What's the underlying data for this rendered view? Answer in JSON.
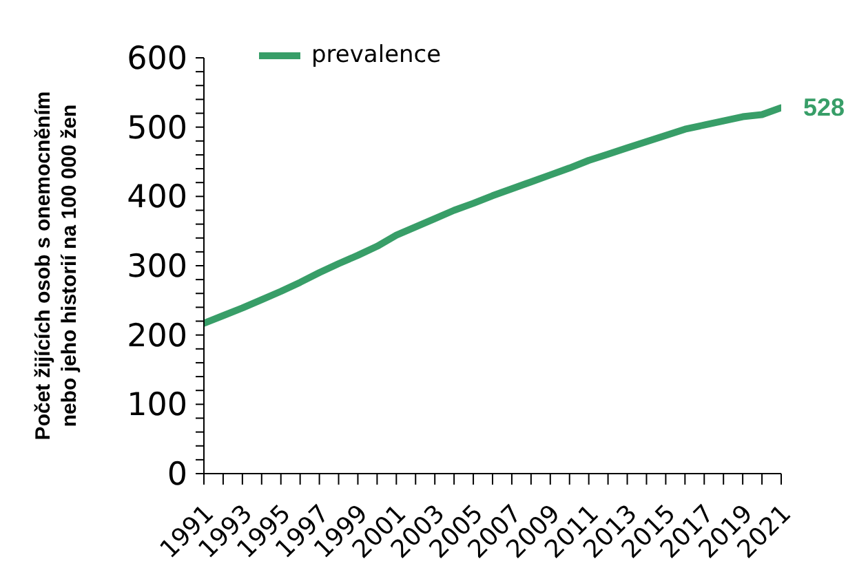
{
  "chart_data": {
    "type": "line",
    "ylabel": "Počet žijících osob s onemocněním nebo jeho historií na 100 000 žen",
    "categories": [
      "1991",
      null,
      "1993",
      null,
      "1995",
      null,
      "1997",
      null,
      "1999",
      null,
      "2001",
      null,
      "2003",
      null,
      "2005",
      null,
      "2007",
      null,
      "2009",
      null,
      "2011",
      null,
      "2013",
      null,
      "2015",
      null,
      "2017",
      null,
      "2019",
      null,
      "2021"
    ],
    "series": [
      {
        "name": "prevalence",
        "color": "#389e68",
        "values": [
          217,
          228,
          239,
          251,
          263,
          276,
          290,
          303,
          315,
          328,
          344,
          356,
          368,
          380,
          390,
          401,
          411,
          421,
          431,
          441,
          452,
          461,
          470,
          479,
          488,
          497,
          503,
          509,
          515,
          518,
          528
        ],
        "value_labels": [
          null,
          null,
          null,
          null,
          null,
          null,
          null,
          null,
          null,
          null,
          null,
          null,
          null,
          null,
          null,
          null,
          null,
          null,
          null,
          null,
          null,
          null,
          null,
          null,
          null,
          null,
          null,
          null,
          null,
          null,
          "528"
        ]
      }
    ],
    "ylim": [
      0,
      600
    ],
    "yticks": [
      0,
      {
        "value": 20,
        "label": null
      },
      {
        "value": 40,
        "label": null
      },
      {
        "value": 60,
        "label": null
      },
      {
        "value": 80,
        "label": null
      },
      100,
      {
        "value": 120,
        "label": null
      },
      {
        "value": 140,
        "label": null
      },
      {
        "value": 160,
        "label": null
      },
      {
        "value": 180,
        "label": null
      },
      200,
      {
        "value": 220,
        "label": null
      },
      {
        "value": 240,
        "label": null
      },
      {
        "value": 260,
        "label": null
      },
      {
        "value": 280,
        "label": null
      },
      300,
      {
        "value": 320,
        "label": null
      },
      {
        "value": 340,
        "label": null
      },
      {
        "value": 360,
        "label": null
      },
      {
        "value": 380,
        "label": null
      },
      400,
      {
        "value": 420,
        "label": null
      },
      {
        "value": 440,
        "label": null
      },
      {
        "value": 460,
        "label": null
      },
      {
        "value": 480,
        "label": null
      },
      500,
      {
        "value": 520,
        "label": null
      },
      {
        "value": 540,
        "label": null
      },
      {
        "value": 560,
        "label": null
      },
      {
        "value": 580,
        "label": null
      },
      600
    ],
    "grid": false,
    "legend": "top left",
    "marker": "none",
    "line_style": "solid"
  }
}
